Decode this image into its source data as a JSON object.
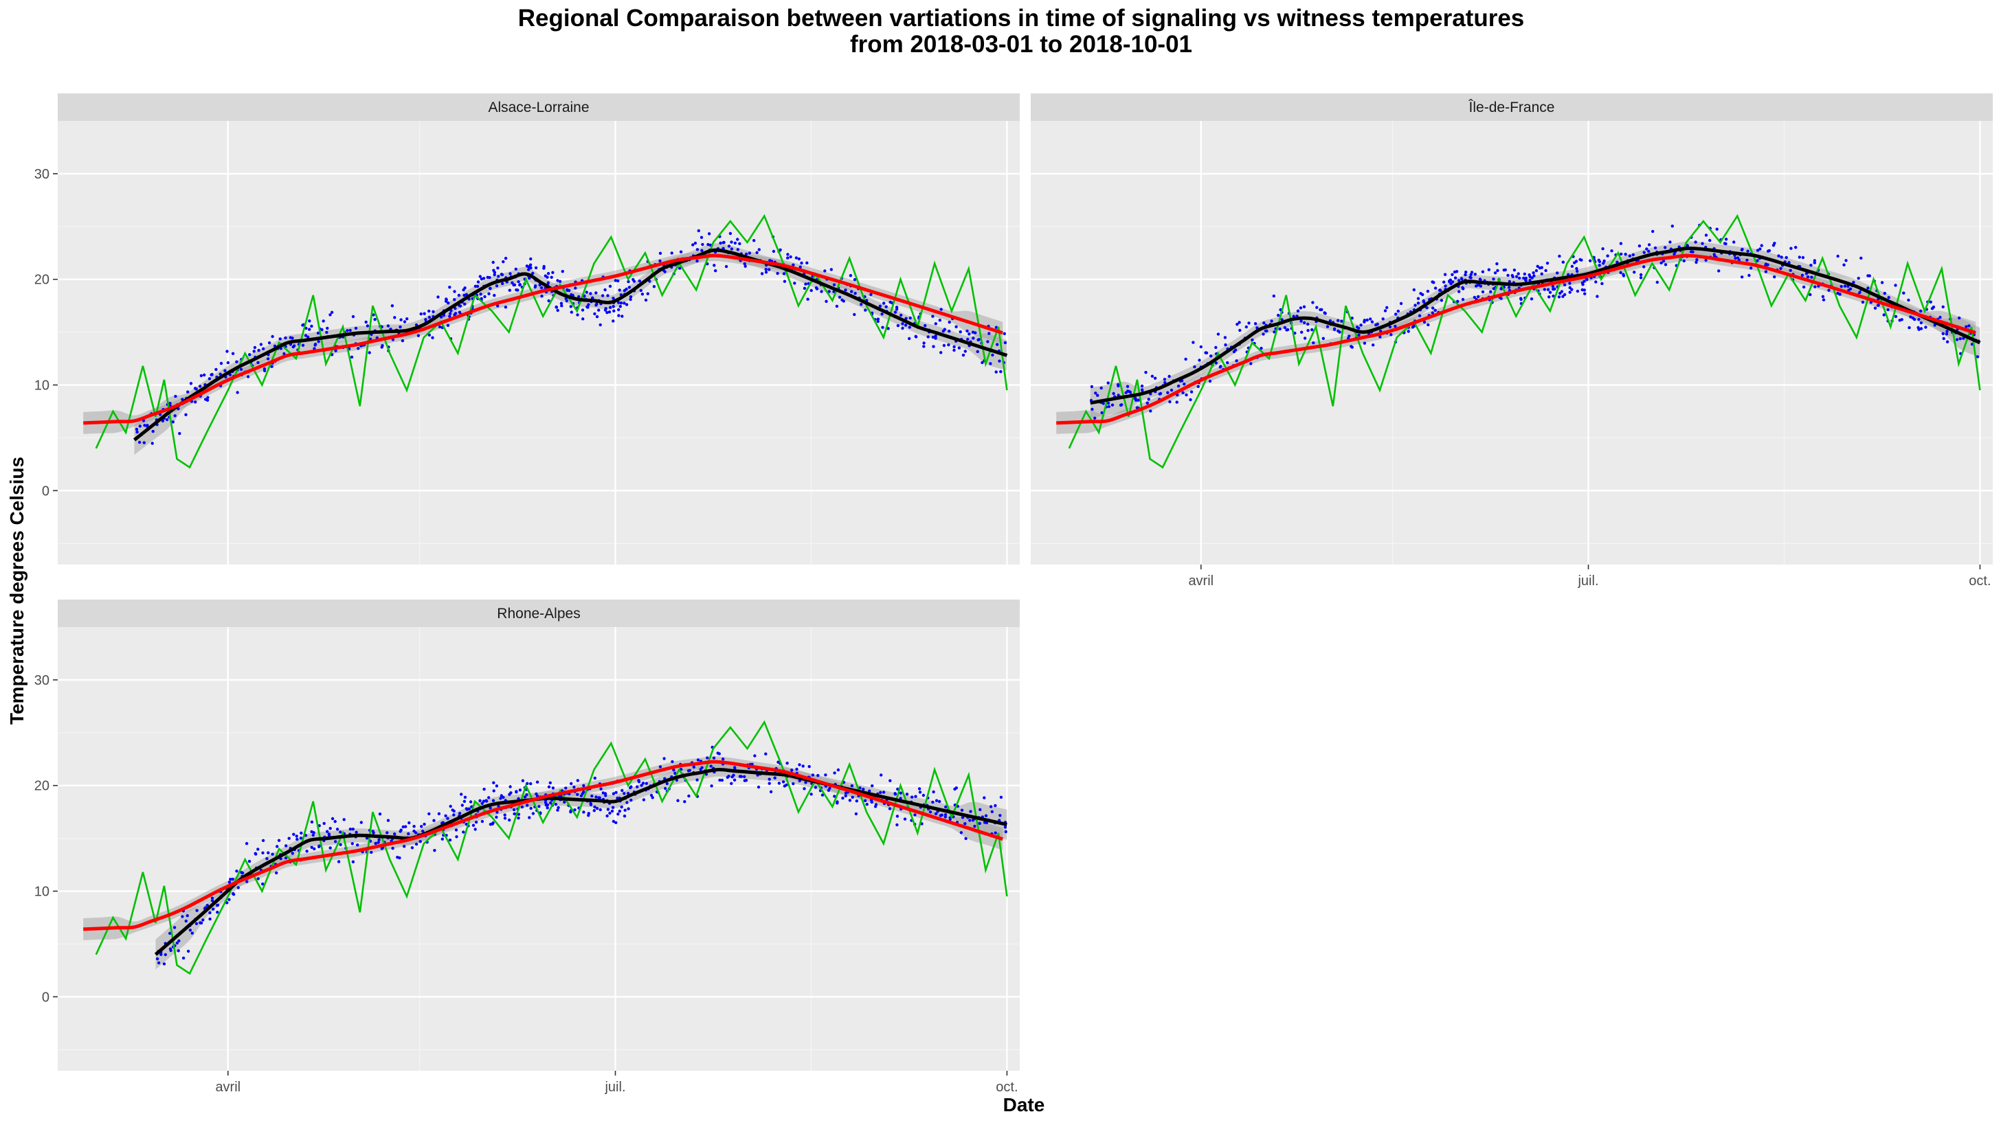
{
  "chart_data": {
    "type": "line",
    "title": "Regional Comparaison between vartiations in time of signaling vs witness temperatures",
    "subtitle": "from 2018-03-01 to 2018-10-01",
    "xlabel": "Date",
    "ylabel": "Temperature degrees Celsius",
    "xlim": [
      "2018-02-20",
      "2018-10-04"
    ],
    "ylim": [
      -7,
      35
    ],
    "y_ticks": [
      0,
      10,
      20,
      30
    ],
    "x_ticks": [
      {
        "date": "2018-04-01",
        "label": "avril"
      },
      {
        "date": "2018-07-01",
        "label": "juil."
      },
      {
        "date": "2018-10-01",
        "label": "oct."
      }
    ],
    "grid": true,
    "legend": "none",
    "colors": {
      "panel_bg": "#ebebeb",
      "strip_bg": "#d9d9d9",
      "grid_major": "#ffffff",
      "grid_minor": "#f5f5f5",
      "points": "#0000ff",
      "witness_line": "#00c000",
      "signaling_smooth": "#000000",
      "witness_smooth": "#ff0000",
      "ribbon": "#999999"
    },
    "panels": [
      {
        "name": "Alsace-Lorraine",
        "witness_smooth": [
          {
            "x": "2018-02-26",
            "y": 6.4
          },
          {
            "x": "2018-03-10",
            "y": 6.6
          },
          {
            "x": "2018-03-20",
            "y": 8.0
          },
          {
            "x": "2018-04-01",
            "y": 10.5
          },
          {
            "x": "2018-04-15",
            "y": 12.8
          },
          {
            "x": "2018-05-01",
            "y": 13.8
          },
          {
            "x": "2018-05-15",
            "y": 15.0
          },
          {
            "x": "2018-06-01",
            "y": 17.5
          },
          {
            "x": "2018-06-15",
            "y": 19.0
          },
          {
            "x": "2018-07-01",
            "y": 20.3
          },
          {
            "x": "2018-07-15",
            "y": 21.8
          },
          {
            "x": "2018-07-25",
            "y": 22.3
          },
          {
            "x": "2018-08-10",
            "y": 21.3
          },
          {
            "x": "2018-08-25",
            "y": 19.5
          },
          {
            "x": "2018-09-10",
            "y": 17.5
          },
          {
            "x": "2018-10-01",
            "y": 14.8
          }
        ],
        "signaling_smooth": [
          {
            "x": "2018-03-10",
            "y": 4.8
          },
          {
            "x": "2018-03-20",
            "y": 8.0
          },
          {
            "x": "2018-04-01",
            "y": 11.2
          },
          {
            "x": "2018-04-15",
            "y": 14.0
          },
          {
            "x": "2018-05-01",
            "y": 14.9
          },
          {
            "x": "2018-05-15",
            "y": 15.2
          },
          {
            "x": "2018-06-01",
            "y": 19.5
          },
          {
            "x": "2018-06-10",
            "y": 20.5
          },
          {
            "x": "2018-06-20",
            "y": 18.2
          },
          {
            "x": "2018-07-01",
            "y": 17.8
          },
          {
            "x": "2018-07-12",
            "y": 21.0
          },
          {
            "x": "2018-07-25",
            "y": 22.9
          },
          {
            "x": "2018-08-10",
            "y": 21.0
          },
          {
            "x": "2018-08-25",
            "y": 18.5
          },
          {
            "x": "2018-09-10",
            "y": 15.5
          },
          {
            "x": "2018-10-01",
            "y": 12.8
          }
        ]
      },
      {
        "name": "Île-de-France",
        "witness_smooth": [
          {
            "x": "2018-02-26",
            "y": 6.4
          },
          {
            "x": "2018-03-10",
            "y": 6.6
          },
          {
            "x": "2018-03-20",
            "y": 8.0
          },
          {
            "x": "2018-04-01",
            "y": 10.5
          },
          {
            "x": "2018-04-15",
            "y": 12.8
          },
          {
            "x": "2018-05-01",
            "y": 13.8
          },
          {
            "x": "2018-05-15",
            "y": 15.0
          },
          {
            "x": "2018-06-01",
            "y": 17.5
          },
          {
            "x": "2018-06-15",
            "y": 19.0
          },
          {
            "x": "2018-07-01",
            "y": 20.3
          },
          {
            "x": "2018-07-15",
            "y": 21.8
          },
          {
            "x": "2018-07-25",
            "y": 22.3
          },
          {
            "x": "2018-08-10",
            "y": 21.3
          },
          {
            "x": "2018-08-25",
            "y": 19.5
          },
          {
            "x": "2018-09-10",
            "y": 17.5
          },
          {
            "x": "2018-10-01",
            "y": 14.8
          }
        ],
        "signaling_smooth": [
          {
            "x": "2018-03-06",
            "y": 8.3
          },
          {
            "x": "2018-03-20",
            "y": 9.3
          },
          {
            "x": "2018-04-01",
            "y": 11.5
          },
          {
            "x": "2018-04-15",
            "y": 15.3
          },
          {
            "x": "2018-04-25",
            "y": 16.5
          },
          {
            "x": "2018-05-10",
            "y": 14.9
          },
          {
            "x": "2018-05-20",
            "y": 16.6
          },
          {
            "x": "2018-06-01",
            "y": 19.8
          },
          {
            "x": "2018-06-15",
            "y": 19.5
          },
          {
            "x": "2018-07-01",
            "y": 20.5
          },
          {
            "x": "2018-07-15",
            "y": 22.3
          },
          {
            "x": "2018-07-25",
            "y": 23.0
          },
          {
            "x": "2018-08-10",
            "y": 22.2
          },
          {
            "x": "2018-09-01",
            "y": 19.5
          },
          {
            "x": "2018-10-01",
            "y": 14.0
          }
        ]
      },
      {
        "name": "Rhone-Alpes",
        "witness_smooth": [
          {
            "x": "2018-02-26",
            "y": 6.4
          },
          {
            "x": "2018-03-10",
            "y": 6.6
          },
          {
            "x": "2018-03-20",
            "y": 8.0
          },
          {
            "x": "2018-04-01",
            "y": 10.5
          },
          {
            "x": "2018-04-15",
            "y": 12.8
          },
          {
            "x": "2018-05-01",
            "y": 13.8
          },
          {
            "x": "2018-05-15",
            "y": 15.0
          },
          {
            "x": "2018-06-01",
            "y": 17.5
          },
          {
            "x": "2018-06-15",
            "y": 19.0
          },
          {
            "x": "2018-07-01",
            "y": 20.3
          },
          {
            "x": "2018-07-15",
            "y": 21.8
          },
          {
            "x": "2018-07-25",
            "y": 22.3
          },
          {
            "x": "2018-08-10",
            "y": 21.3
          },
          {
            "x": "2018-08-25",
            "y": 19.5
          },
          {
            "x": "2018-09-10",
            "y": 17.5
          },
          {
            "x": "2018-10-01",
            "y": 14.8
          }
        ],
        "signaling_smooth": [
          {
            "x": "2018-03-15",
            "y": 4.0
          },
          {
            "x": "2018-03-25",
            "y": 7.5
          },
          {
            "x": "2018-04-05",
            "y": 11.5
          },
          {
            "x": "2018-04-20",
            "y": 14.8
          },
          {
            "x": "2018-05-01",
            "y": 15.3
          },
          {
            "x": "2018-05-15",
            "y": 15.0
          },
          {
            "x": "2018-06-01",
            "y": 18.2
          },
          {
            "x": "2018-06-15",
            "y": 18.8
          },
          {
            "x": "2018-07-01",
            "y": 18.5
          },
          {
            "x": "2018-07-15",
            "y": 20.8
          },
          {
            "x": "2018-07-25",
            "y": 21.5
          },
          {
            "x": "2018-08-10",
            "y": 21.0
          },
          {
            "x": "2018-09-01",
            "y": 19.0
          },
          {
            "x": "2018-10-01",
            "y": 16.3
          }
        ]
      }
    ],
    "witness_daily": [
      {
        "x": "2018-03-01",
        "y": 4.0
      },
      {
        "x": "2018-03-05",
        "y": 7.5
      },
      {
        "x": "2018-03-08",
        "y": 5.5
      },
      {
        "x": "2018-03-12",
        "y": 11.8
      },
      {
        "x": "2018-03-15",
        "y": 7.0
      },
      {
        "x": "2018-03-17",
        "y": 10.5
      },
      {
        "x": "2018-03-20",
        "y": 3.0
      },
      {
        "x": "2018-03-23",
        "y": 2.2
      },
      {
        "x": "2018-03-27",
        "y": 5.5
      },
      {
        "x": "2018-04-01",
        "y": 9.5
      },
      {
        "x": "2018-04-05",
        "y": 13.0
      },
      {
        "x": "2018-04-09",
        "y": 10.0
      },
      {
        "x": "2018-04-13",
        "y": 14.0
      },
      {
        "x": "2018-04-17",
        "y": 12.5
      },
      {
        "x": "2018-04-21",
        "y": 18.5
      },
      {
        "x": "2018-04-24",
        "y": 12.0
      },
      {
        "x": "2018-04-28",
        "y": 15.5
      },
      {
        "x": "2018-05-02",
        "y": 8.0
      },
      {
        "x": "2018-05-05",
        "y": 17.5
      },
      {
        "x": "2018-05-09",
        "y": 13.0
      },
      {
        "x": "2018-05-13",
        "y": 9.5
      },
      {
        "x": "2018-05-17",
        "y": 14.5
      },
      {
        "x": "2018-05-21",
        "y": 16.0
      },
      {
        "x": "2018-05-25",
        "y": 13.0
      },
      {
        "x": "2018-05-29",
        "y": 18.5
      },
      {
        "x": "2018-06-02",
        "y": 17.0
      },
      {
        "x": "2018-06-06",
        "y": 15.0
      },
      {
        "x": "2018-06-10",
        "y": 20.0
      },
      {
        "x": "2018-06-14",
        "y": 16.5
      },
      {
        "x": "2018-06-18",
        "y": 19.5
      },
      {
        "x": "2018-06-22",
        "y": 17.0
      },
      {
        "x": "2018-06-26",
        "y": 21.5
      },
      {
        "x": "2018-06-30",
        "y": 24.0
      },
      {
        "x": "2018-07-04",
        "y": 20.0
      },
      {
        "x": "2018-07-08",
        "y": 22.5
      },
      {
        "x": "2018-07-12",
        "y": 18.5
      },
      {
        "x": "2018-07-16",
        "y": 21.5
      },
      {
        "x": "2018-07-20",
        "y": 19.0
      },
      {
        "x": "2018-07-24",
        "y": 23.5
      },
      {
        "x": "2018-07-28",
        "y": 25.5
      },
      {
        "x": "2018-08-01",
        "y": 23.5
      },
      {
        "x": "2018-08-05",
        "y": 26.0
      },
      {
        "x": "2018-08-09",
        "y": 22.0
      },
      {
        "x": "2018-08-13",
        "y": 17.5
      },
      {
        "x": "2018-08-17",
        "y": 20.5
      },
      {
        "x": "2018-08-21",
        "y": 18.0
      },
      {
        "x": "2018-08-25",
        "y": 22.0
      },
      {
        "x": "2018-08-29",
        "y": 17.5
      },
      {
        "x": "2018-09-02",
        "y": 14.5
      },
      {
        "x": "2018-09-06",
        "y": 20.0
      },
      {
        "x": "2018-09-10",
        "y": 15.5
      },
      {
        "x": "2018-09-14",
        "y": 21.5
      },
      {
        "x": "2018-09-18",
        "y": 17.0
      },
      {
        "x": "2018-09-22",
        "y": 21.0
      },
      {
        "x": "2018-09-26",
        "y": 12.0
      },
      {
        "x": "2018-09-29",
        "y": 15.5
      },
      {
        "x": "2018-10-01",
        "y": 9.5
      }
    ]
  }
}
